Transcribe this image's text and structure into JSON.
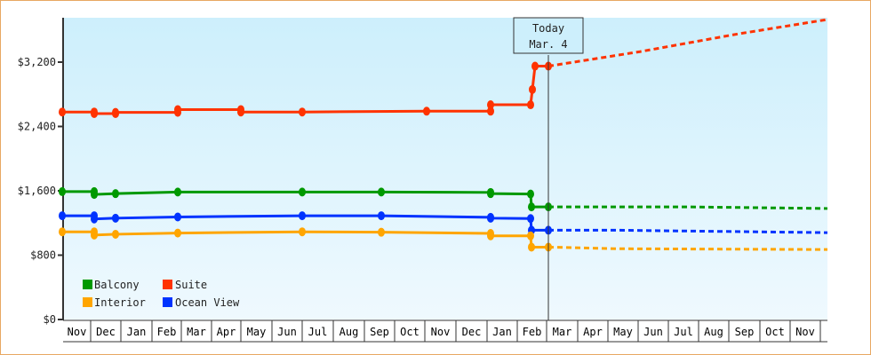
{
  "chart_data": {
    "type": "line",
    "title": "",
    "xlabel": "",
    "ylabel": "",
    "ylim": [
      0,
      3700
    ],
    "y_ticks": [
      {
        "value": 0,
        "label": "$0"
      },
      {
        "value": 800,
        "label": "$800"
      },
      {
        "value": 1600,
        "label": "$1,600"
      },
      {
        "value": 2400,
        "label": "$2,400"
      },
      {
        "value": 3200,
        "label": "$3,200"
      }
    ],
    "x_months": [
      "Nov",
      "Dec",
      "Jan",
      "Feb",
      "Mar",
      "Apr",
      "May",
      "Jun",
      "Jul",
      "Aug",
      "Sep",
      "Oct",
      "Nov",
      "Dec",
      "Jan",
      "Feb",
      "Mar",
      "Apr",
      "May",
      "Jun",
      "Jul",
      "Aug",
      "Sep",
      "Oct",
      "Nov"
    ],
    "today_marker": {
      "line1": "Today",
      "line2": "Mar. 4"
    },
    "legend": {
      "position": "lower-left inside",
      "entries": [
        {
          "name": "Balcony",
          "color": "#009900"
        },
        {
          "name": "Suite",
          "color": "#ff3300"
        },
        {
          "name": "Interior",
          "color": "#ffa500"
        },
        {
          "name": "Ocean View",
          "color": "#0033ff"
        }
      ]
    },
    "series": [
      {
        "name": "Suite",
        "color": "#ff3300",
        "historical": [
          {
            "date": "Nov 1",
            "value": 2580
          },
          {
            "date": "Dec 1",
            "value": 2580
          },
          {
            "date": "Dec 2",
            "value": 2560
          },
          {
            "date": "Dec 20",
            "value": 2560
          },
          {
            "date": "Dec 21",
            "value": 2575
          },
          {
            "date": "Feb 20",
            "value": 2575
          },
          {
            "date": "Feb 21",
            "value": 2610
          },
          {
            "date": "Apr 25",
            "value": 2610
          },
          {
            "date": "Apr 26",
            "value": 2580
          },
          {
            "date": "Jun 20",
            "value": 2580
          },
          {
            "date": "Nov 15",
            "value": 2590
          },
          {
            "date": "Jan 8",
            "value": 2590
          },
          {
            "date": "Jan 9",
            "value": 2670
          },
          {
            "date": "Feb 22",
            "value": 2670
          },
          {
            "date": "Feb 25",
            "value": 2860
          },
          {
            "date": "Feb 28",
            "value": 3150
          },
          {
            "date": "Mar 4",
            "value": 3150
          }
        ],
        "projected": [
          {
            "date": "Mar 4",
            "value": 3150
          },
          {
            "date": "Jun",
            "value": 3330
          },
          {
            "date": "Sep",
            "value": 3550
          },
          {
            "date": "Nov",
            "value": 3730
          }
        ]
      },
      {
        "name": "Balcony",
        "color": "#009900",
        "historical": [
          {
            "date": "Nov 1",
            "value": 1590
          },
          {
            "date": "Dec 1",
            "value": 1590
          },
          {
            "date": "Dec 2",
            "value": 1555
          },
          {
            "date": "Dec 20",
            "value": 1565
          },
          {
            "date": "Feb 20",
            "value": 1585
          },
          {
            "date": "Jul 1",
            "value": 1585
          },
          {
            "date": "Sep 15",
            "value": 1585
          },
          {
            "date": "Jan 8",
            "value": 1580
          },
          {
            "date": "Jan 9",
            "value": 1565
          },
          {
            "date": "Feb 22",
            "value": 1560
          },
          {
            "date": "Feb 24",
            "value": 1400
          },
          {
            "date": "Mar 4",
            "value": 1400
          }
        ],
        "projected": [
          {
            "date": "Mar 4",
            "value": 1400
          },
          {
            "date": "Aug",
            "value": 1400
          },
          {
            "date": "Nov",
            "value": 1380
          }
        ]
      },
      {
        "name": "Ocean View",
        "color": "#0033ff",
        "historical": [
          {
            "date": "Nov 1",
            "value": 1290
          },
          {
            "date": "Dec 1",
            "value": 1290
          },
          {
            "date": "Dec 2",
            "value": 1250
          },
          {
            "date": "Dec 20",
            "value": 1260
          },
          {
            "date": "Feb 20",
            "value": 1275
          },
          {
            "date": "Jul 1",
            "value": 1290
          },
          {
            "date": "Sep 15",
            "value": 1290
          },
          {
            "date": "Jan 8",
            "value": 1270
          },
          {
            "date": "Jan 9",
            "value": 1260
          },
          {
            "date": "Feb 22",
            "value": 1255
          },
          {
            "date": "Feb 24",
            "value": 1110
          },
          {
            "date": "Mar 4",
            "value": 1110
          }
        ],
        "projected": [
          {
            "date": "Mar 4",
            "value": 1110
          },
          {
            "date": "May",
            "value": 1110
          },
          {
            "date": "Nov",
            "value": 1080
          }
        ]
      },
      {
        "name": "Interior",
        "color": "#ffa500",
        "historical": [
          {
            "date": "Nov 1",
            "value": 1090
          },
          {
            "date": "Dec 1",
            "value": 1090
          },
          {
            "date": "Dec 2",
            "value": 1050
          },
          {
            "date": "Dec 20",
            "value": 1060
          },
          {
            "date": "Feb 20",
            "value": 1075
          },
          {
            "date": "Jul 1",
            "value": 1090
          },
          {
            "date": "Sep 15",
            "value": 1085
          },
          {
            "date": "Jan 8",
            "value": 1070
          },
          {
            "date": "Jan 9",
            "value": 1040
          },
          {
            "date": "Feb 22",
            "value": 1040
          },
          {
            "date": "Feb 24",
            "value": 900
          },
          {
            "date": "Mar 4",
            "value": 900
          }
        ],
        "projected": [
          {
            "date": "Mar 4",
            "value": 900
          },
          {
            "date": "May",
            "value": 880
          },
          {
            "date": "Nov",
            "value": 870
          }
        ]
      }
    ],
    "grid": false,
    "plot_background": "gradient #cdeffc → #eef9fe"
  }
}
